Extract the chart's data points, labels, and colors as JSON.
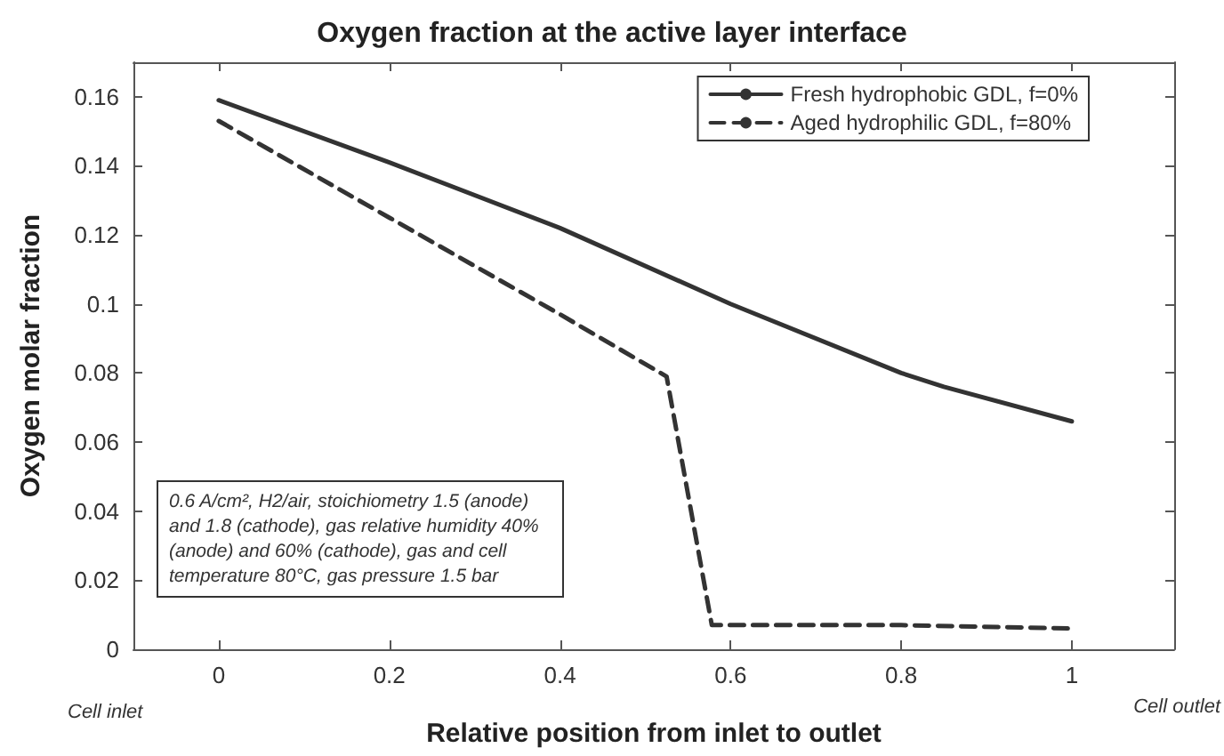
{
  "chart_data": {
    "type": "line",
    "title": "Oxygen fraction at the active layer interface",
    "xlabel": "Relative position from inlet to outlet",
    "ylabel": "Oxygen molar fraction",
    "xlim": [
      -0.1,
      1.12
    ],
    "xticks": [
      0,
      0.2,
      0.4,
      0.6,
      0.8,
      1
    ],
    "ylim": [
      0,
      0.17
    ],
    "yticks": [
      0,
      0.02,
      0.04,
      0.06,
      0.08,
      0.1,
      0.12,
      0.14,
      0.16
    ],
    "grid": false,
    "legend": "top right",
    "marker": "none",
    "series": [
      {
        "name": "Fresh hydrophobic GDL, f=0%",
        "color": "#333333",
        "line_style": "solid",
        "x": [
          0,
          0.2,
          0.4,
          0.6,
          0.8,
          0.85,
          1
        ],
        "values": [
          0.159,
          0.141,
          0.122,
          0.1,
          0.08,
          0.076,
          0.066
        ]
      },
      {
        "name": "Aged hydrophilic GDL, f=80%",
        "color": "#333333",
        "line_style": "dashed",
        "x": [
          0,
          0.2,
          0.4,
          0.525,
          0.578,
          0.8,
          1
        ],
        "values": [
          0.153,
          0.125,
          0.097,
          0.079,
          0.007,
          0.007,
          0.006
        ]
      }
    ],
    "annotations": [
      "0.6 A/cm², H2/air, stoichiometry 1.5 (anode) and 1.8 (cathode), gas relative humidity 40% (anode) and 60% (cathode), gas and cell temperature 80°C, gas pressure 1.5 bar",
      "Cell inlet",
      "Cell outlet"
    ]
  }
}
